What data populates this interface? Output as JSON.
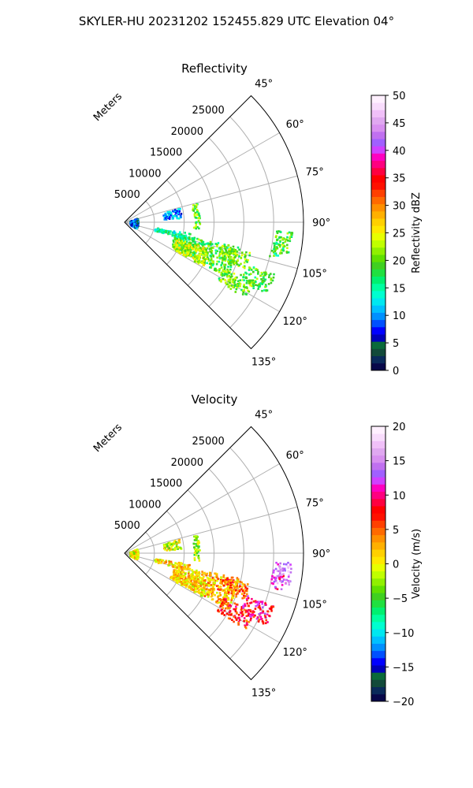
{
  "figure": {
    "suptitle": "SKYLER-HU  20231202  152455.829 UTC Elevation 04°"
  },
  "chart_data": [
    {
      "type": "polar-sector",
      "title": "Reflectivity",
      "radial_label": "Meters",
      "radial_ticks": [
        5000,
        10000,
        15000,
        20000,
        25000
      ],
      "radial_tick_labels": [
        "5000",
        "10000",
        "15000",
        "20000",
        "25000"
      ],
      "rmax": 30000,
      "theta_range_deg": [
        45,
        135
      ],
      "theta_ticks": [
        45,
        60,
        75,
        90,
        105,
        120,
        135
      ],
      "theta_tick_labels": [
        "45°",
        "60°",
        "75°",
        "90°",
        "105°",
        "120°",
        "135°"
      ],
      "grid": true,
      "colorbar": {
        "label": "Reflectivity dBZ",
        "min": 0,
        "max": 50,
        "ticks": [
          0,
          5,
          10,
          15,
          20,
          25,
          30,
          35,
          40,
          45,
          50
        ],
        "tick_labels": [
          "0",
          "5",
          "10",
          "15",
          "20",
          "25",
          "30",
          "35",
          "40",
          "45",
          "50"
        ],
        "colors": [
          "#08084a",
          "#0a2a5a",
          "#124a3a",
          "#0a6a3a",
          "#0000b8",
          "#0000ff",
          "#0050ff",
          "#0090ff",
          "#00c0ff",
          "#00e8f0",
          "#00ffd0",
          "#00ffa0",
          "#00f070",
          "#20e040",
          "#40d020",
          "#60e000",
          "#90f000",
          "#c0ff00",
          "#e8ff00",
          "#ffe800",
          "#ffd000",
          "#ffb000",
          "#ff9000",
          "#ff6a00",
          "#ff4000",
          "#ff1000",
          "#ff0000",
          "#ff0040",
          "#ff0080",
          "#ff00c0",
          "#d040ff",
          "#a060ff",
          "#c070f0",
          "#d890f0",
          "#e0a8f0",
          "#f0c0f8",
          "#f8dcfc",
          "#fff0ff"
        ]
      },
      "echo_regions": [
        {
          "az": 97,
          "r": 26500,
          "dr": 1500,
          "da": 4,
          "value": 20
        },
        {
          "az": 100,
          "r": 25800,
          "dr": 1000,
          "da": 3,
          "value": 18
        },
        {
          "az": 110,
          "r": 14000,
          "dr": 5500,
          "da": 8,
          "value": 19
        },
        {
          "az": 113,
          "r": 12000,
          "dr": 3000,
          "da": 6,
          "value": 23
        },
        {
          "az": 107,
          "r": 19000,
          "dr": 2500,
          "da": 4,
          "value": 21
        },
        {
          "az": 118,
          "r": 21000,
          "dr": 3000,
          "da": 4,
          "value": 21
        },
        {
          "az": 113,
          "r": 24000,
          "dr": 2500,
          "da": 4,
          "value": 19
        },
        {
          "az": 102,
          "r": 8000,
          "dr": 3000,
          "da": 3,
          "value": 15
        },
        {
          "az": 80,
          "r": 8000,
          "dr": 1500,
          "da": 5,
          "value": 10
        },
        {
          "az": 92,
          "r": 1500,
          "dr": 700,
          "da": 24,
          "value": 8
        },
        {
          "az": 85,
          "r": 12000,
          "dr": 500,
          "da": 10,
          "value": 20
        }
      ]
    },
    {
      "type": "polar-sector",
      "title": "Velocity",
      "radial_label": "Meters",
      "radial_ticks": [
        5000,
        10000,
        15000,
        20000,
        25000
      ],
      "radial_tick_labels": [
        "5000",
        "10000",
        "15000",
        "20000",
        "25000"
      ],
      "rmax": 30000,
      "theta_range_deg": [
        45,
        135
      ],
      "theta_ticks": [
        45,
        60,
        75,
        90,
        105,
        120,
        135
      ],
      "theta_tick_labels": [
        "45°",
        "60°",
        "75°",
        "90°",
        "105°",
        "120°",
        "135°"
      ],
      "grid": true,
      "colorbar": {
        "label": "Velocity (m/s)",
        "min": -20,
        "max": 20,
        "ticks": [
          -20,
          -15,
          -10,
          -5,
          0,
          5,
          10,
          15,
          20
        ],
        "tick_labels": [
          "−20",
          "−15",
          "−10",
          "−5",
          "0",
          "5",
          "10",
          "15",
          "20"
        ],
        "colors": [
          "#08084a",
          "#0a2a5a",
          "#124a3a",
          "#0a6a3a",
          "#0000b8",
          "#0000ff",
          "#0050ff",
          "#0090ff",
          "#00c0ff",
          "#00e8f0",
          "#00ffd0",
          "#00ffa0",
          "#00f070",
          "#20e040",
          "#40d020",
          "#60e000",
          "#90f000",
          "#c0ff00",
          "#e8ff00",
          "#ffe800",
          "#ffd000",
          "#ffb000",
          "#ff9000",
          "#ff6a00",
          "#ff4000",
          "#ff1000",
          "#ff0000",
          "#ff0040",
          "#ff0080",
          "#ff00c0",
          "#d040ff",
          "#a060ff",
          "#c070f0",
          "#d890f0",
          "#e0a8f0",
          "#f0c0f8",
          "#f8dcfc",
          "#fff0ff"
        ]
      },
      "echo_regions": [
        {
          "az": 97,
          "r": 26500,
          "dr": 1500,
          "da": 4,
          "value": 15
        },
        {
          "az": 100,
          "r": 25800,
          "dr": 1000,
          "da": 3,
          "value": 12
        },
        {
          "az": 110,
          "r": 14000,
          "dr": 5500,
          "da": 8,
          "value": 2
        },
        {
          "az": 113,
          "r": 12000,
          "dr": 3000,
          "da": 6,
          "value": 1
        },
        {
          "az": 107,
          "r": 19000,
          "dr": 2500,
          "da": 4,
          "value": 5
        },
        {
          "az": 118,
          "r": 21000,
          "dr": 3000,
          "da": 4,
          "value": 7
        },
        {
          "az": 113,
          "r": 24000,
          "dr": 2500,
          "da": 4,
          "value": 9
        },
        {
          "az": 102,
          "r": 8000,
          "dr": 3000,
          "da": 3,
          "value": 1
        },
        {
          "az": 80,
          "r": 8000,
          "dr": 1500,
          "da": 5,
          "value": -1
        },
        {
          "az": 92,
          "r": 1500,
          "dr": 700,
          "da": 24,
          "value": 0
        },
        {
          "az": 85,
          "r": 12000,
          "dr": 500,
          "da": 10,
          "value": -3
        }
      ]
    }
  ]
}
